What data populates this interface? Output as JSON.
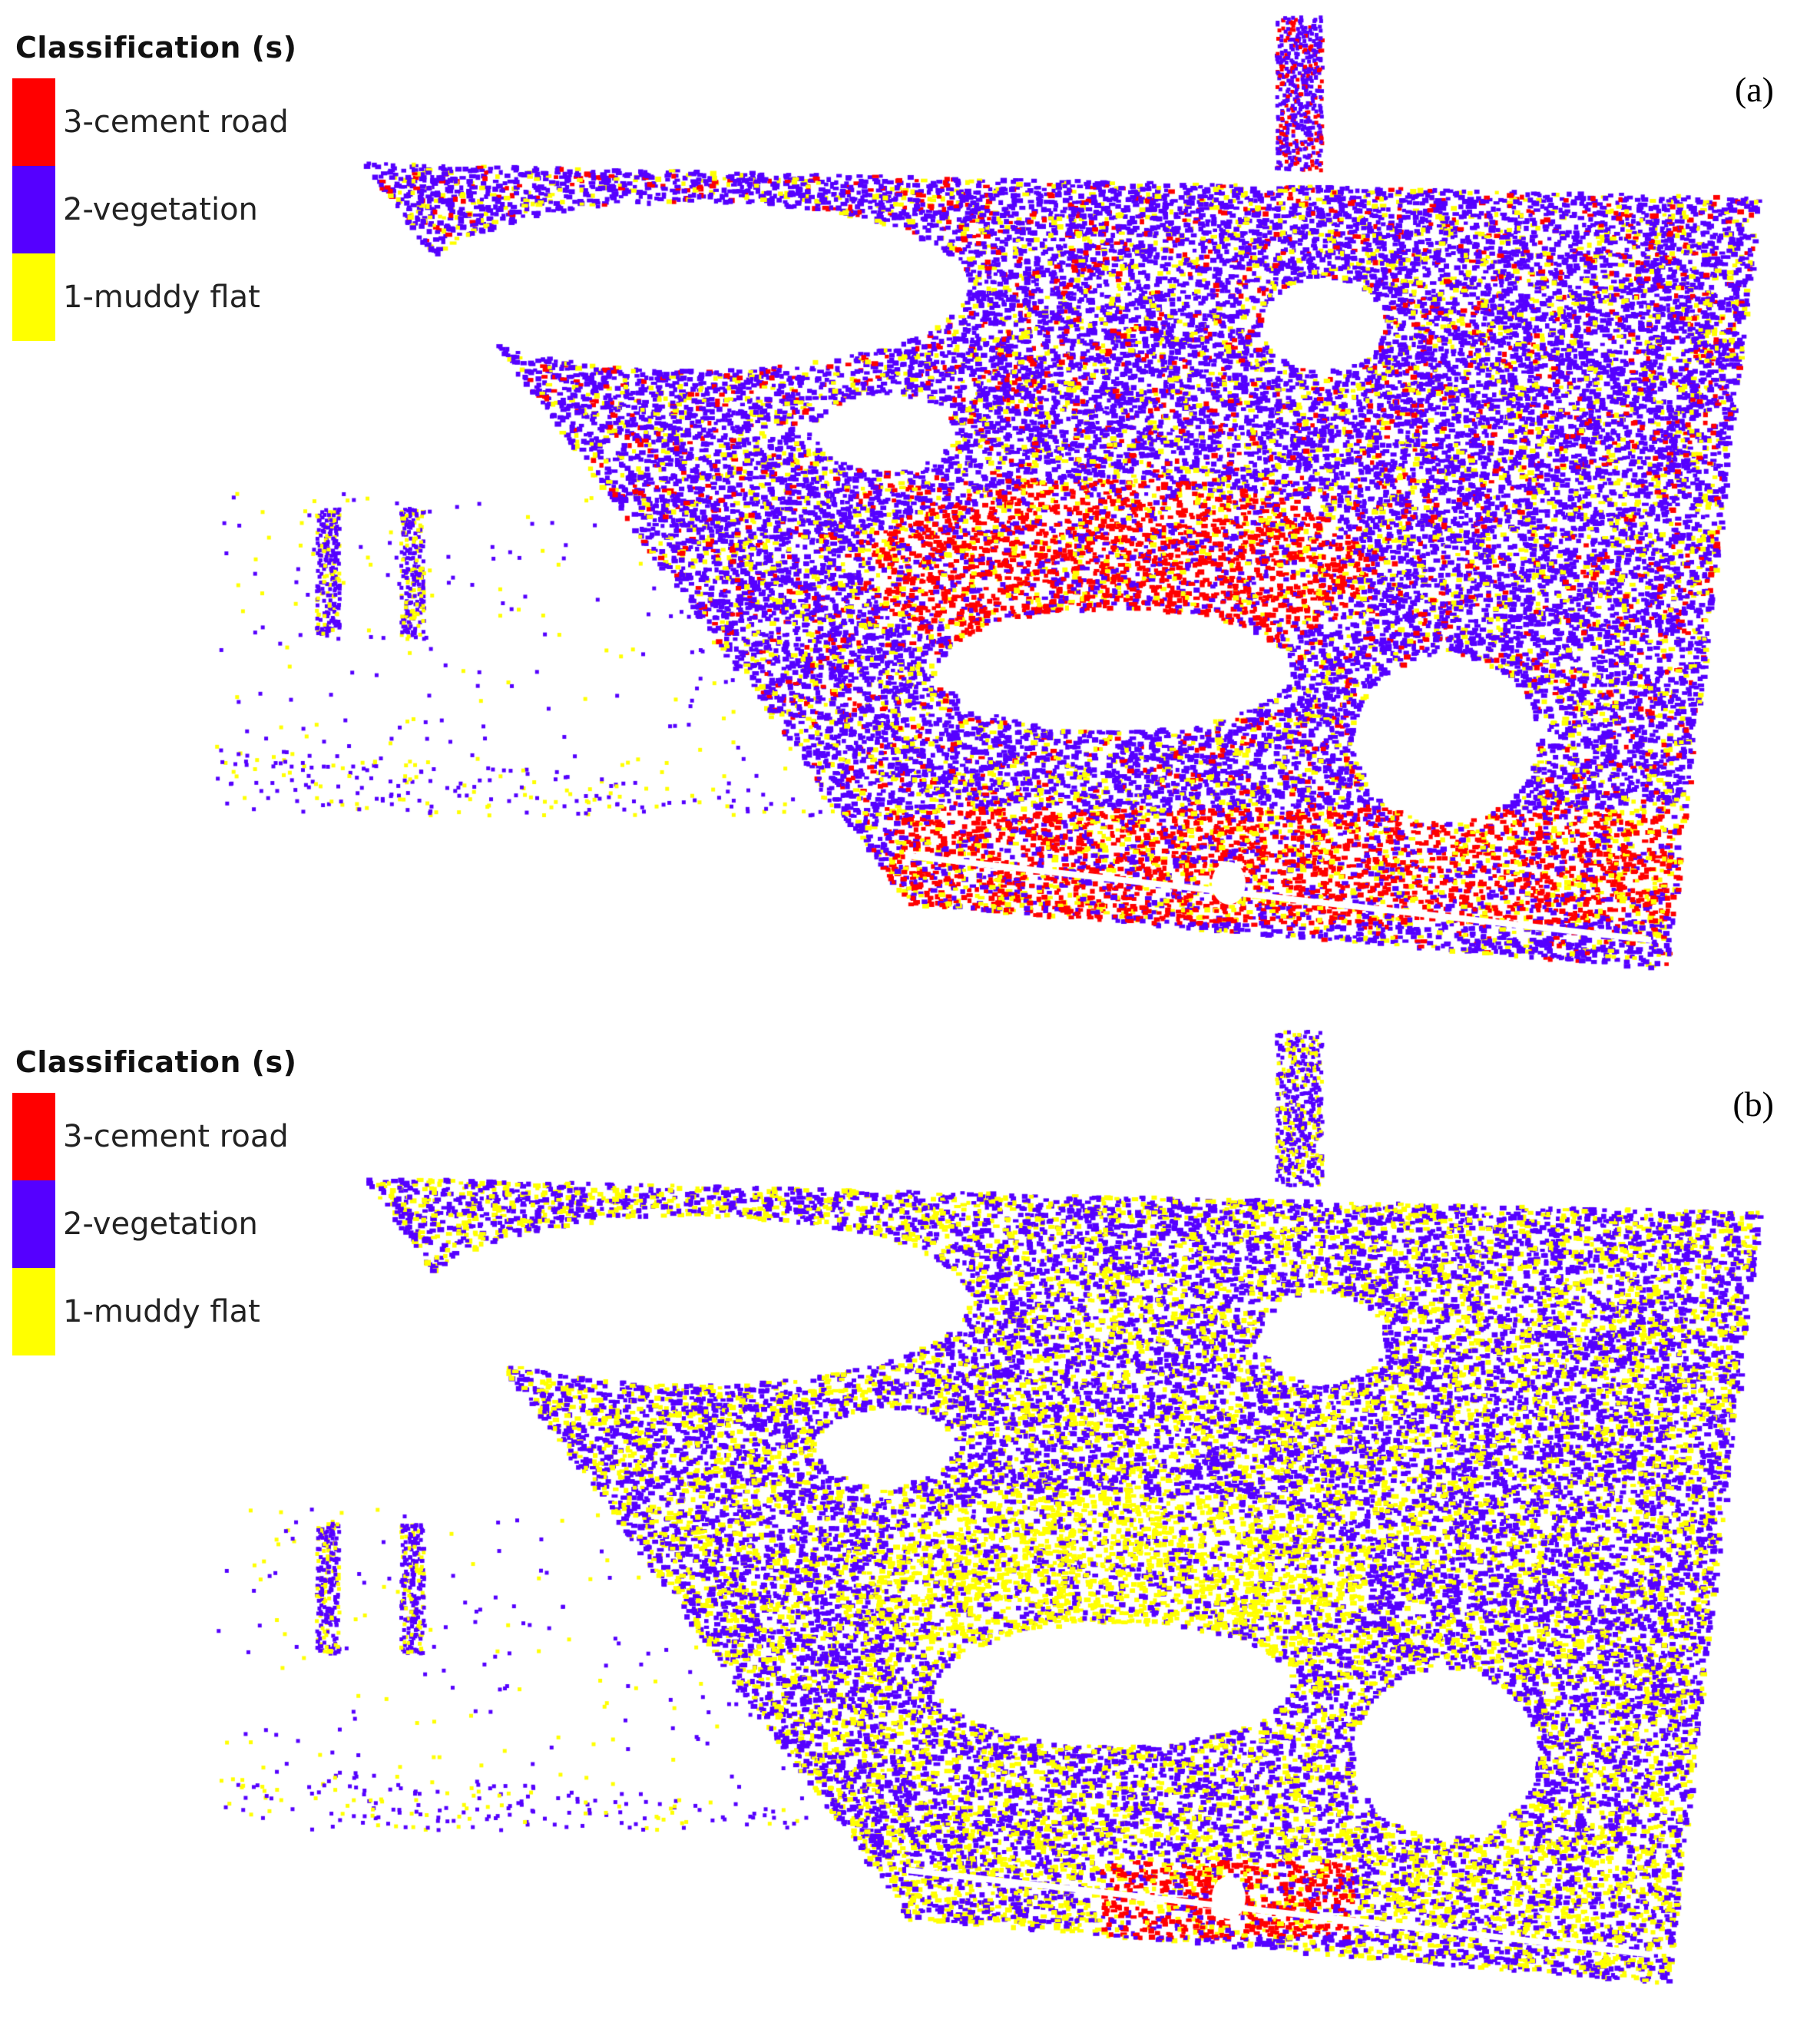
{
  "legend": {
    "title": "Classification (s)",
    "classes": [
      {
        "label": "3-cement road",
        "color": "#ff0000"
      },
      {
        "label": "2-vegetation",
        "color": "#5500ff"
      },
      {
        "label": "1-muddy flat",
        "color": "#ffff00"
      }
    ]
  },
  "panels": [
    {
      "label": "(a)",
      "cement_road_presence": "high",
      "muddy_flat_presence": "low"
    },
    {
      "label": "(b)",
      "cement_road_presence": "low",
      "muddy_flat_presence": "high"
    }
  ],
  "colors": {
    "cement_road": "#ff0000",
    "vegetation": "#5500ff",
    "muddy_flat": "#ffff00",
    "background": "#ffffff"
  }
}
